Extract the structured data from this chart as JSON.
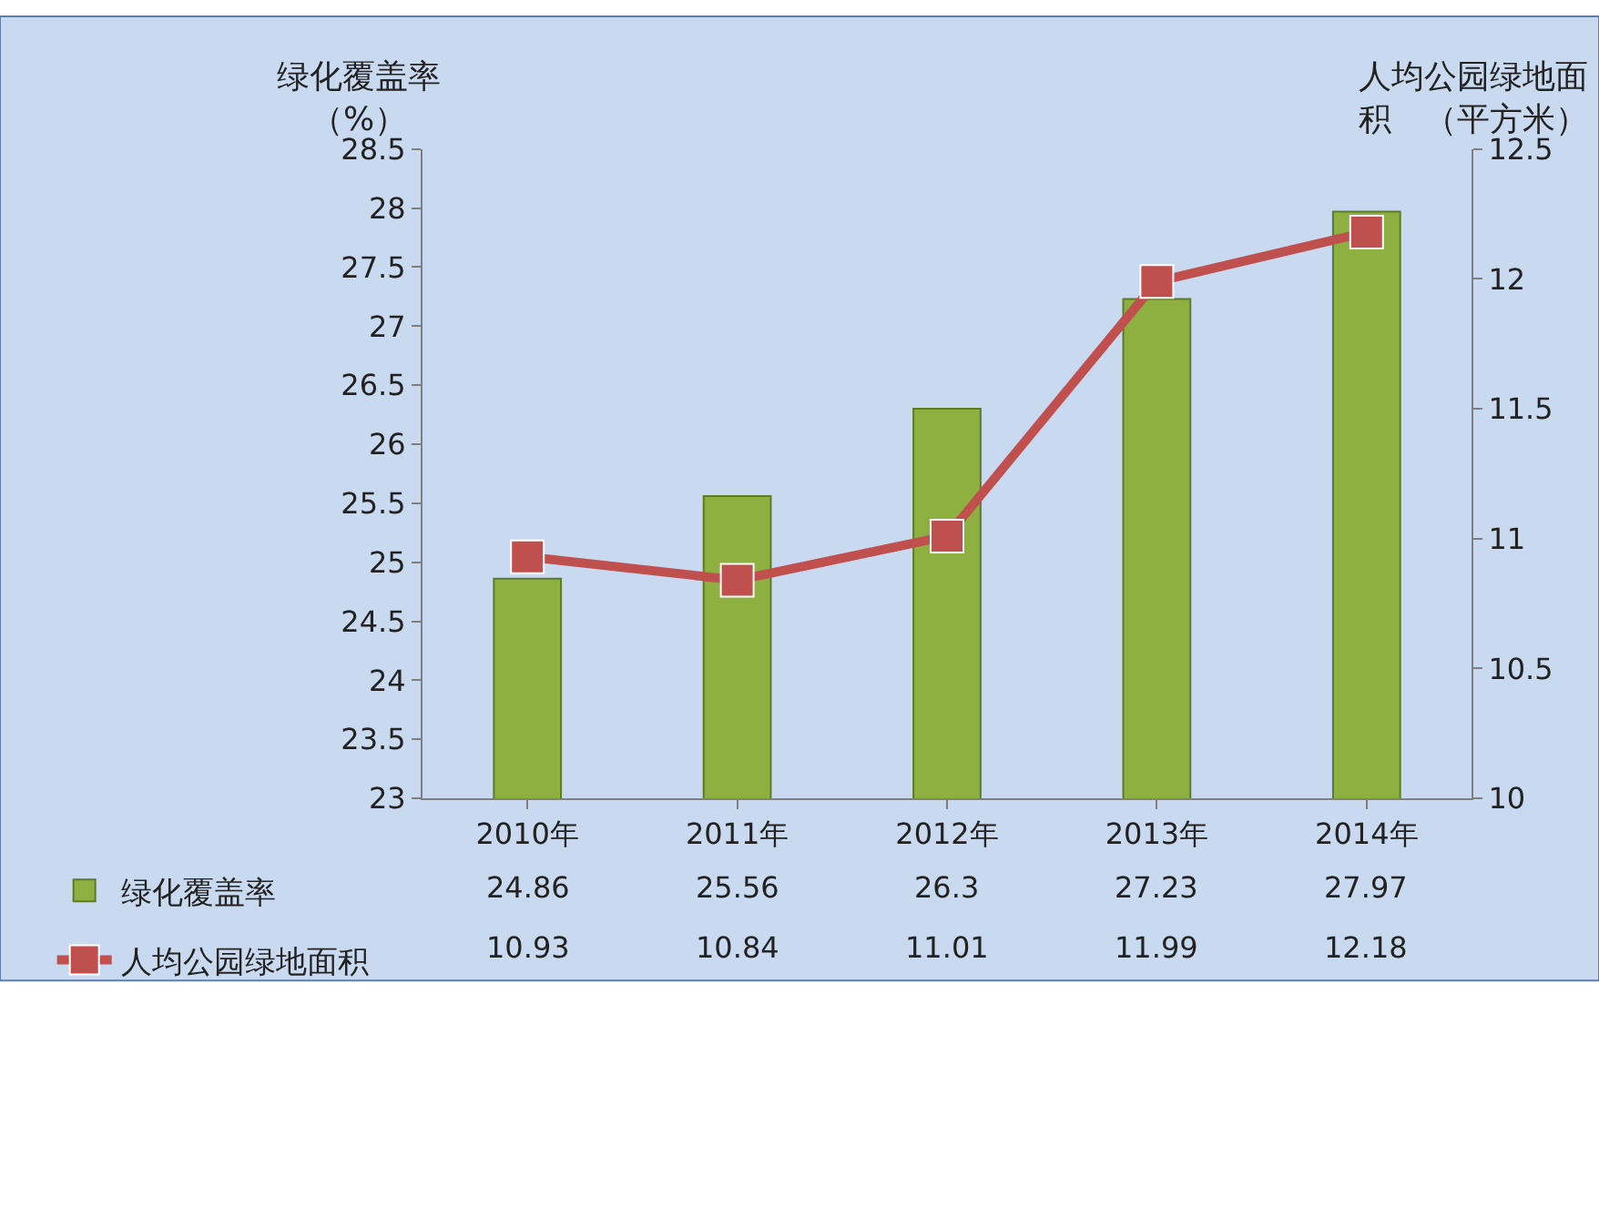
{
  "chart_data": {
    "type": "bar",
    "categories": [
      "2010年",
      "2011年",
      "2012年",
      "2013年",
      "2014年"
    ],
    "series": [
      {
        "name": "绿化覆盖率",
        "color": "#8db040",
        "values": [
          24.86,
          25.56,
          26.3,
          27.23,
          27.97
        ]
      },
      {
        "name": "人均公园绿地面积",
        "type": "line",
        "axis": "y2",
        "color": "#c0504d",
        "marker": "square",
        "values": [
          10.93,
          10.84,
          11.01,
          11.99,
          12.18
        ]
      }
    ],
    "ylabel": "绿化覆盖率（%）",
    "y2label": "人均公园绿地面积　（平方米）",
    "ylim": [
      23,
      28.5
    ],
    "yticks": [
      23,
      23.5,
      24,
      24.5,
      25,
      25.5,
      26,
      26.5,
      27,
      27.5,
      28,
      28.5
    ],
    "y2lim": [
      10,
      12.5
    ],
    "y2ticks": [
      10,
      10.5,
      11,
      11.5,
      12,
      12.5
    ],
    "data_labels": true,
    "legend": "bottom left",
    "grid": false
  }
}
